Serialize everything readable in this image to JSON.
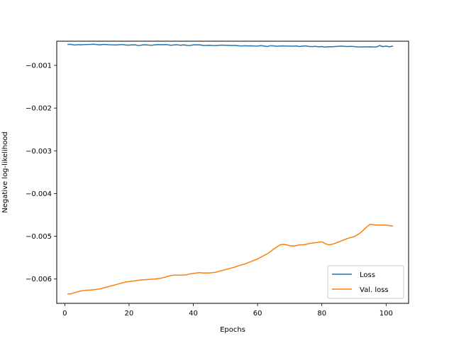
{
  "chart_data": {
    "type": "line",
    "xlabel": "Epochs",
    "ylabel": "Negative log-likelihood",
    "xlim": [
      -2.5,
      107.0
    ],
    "ylim": [
      -0.00657,
      -0.000435
    ],
    "x_ticks": [
      0,
      20,
      40,
      60,
      80,
      100
    ],
    "x_tick_labels": [
      "0",
      "20",
      "40",
      "60",
      "80",
      "100"
    ],
    "y_ticks": [
      -0.001,
      -0.002,
      -0.003,
      -0.004,
      -0.005,
      -0.006
    ],
    "y_tick_labels": [
      "−0.001",
      "−0.002",
      "−0.003",
      "−0.004",
      "−0.005",
      "−0.006"
    ],
    "grid": false,
    "legend": "bottom-right",
    "x": [
      1,
      2,
      3,
      4,
      5,
      6,
      7,
      8,
      9,
      10,
      11,
      12,
      13,
      14,
      15,
      16,
      17,
      18,
      19,
      20,
      21,
      22,
      23,
      24,
      25,
      26,
      27,
      28,
      29,
      30,
      31,
      32,
      33,
      34,
      35,
      36,
      37,
      38,
      39,
      40,
      41,
      42,
      43,
      44,
      45,
      46,
      47,
      48,
      49,
      50,
      51,
      52,
      53,
      54,
      55,
      56,
      57,
      58,
      59,
      60,
      61,
      62,
      63,
      64,
      65,
      66,
      67,
      68,
      69,
      70,
      71,
      72,
      73,
      74,
      75,
      76,
      77,
      78,
      79,
      80,
      81,
      82,
      83,
      84,
      85,
      86,
      87,
      88,
      89,
      90,
      91,
      92,
      93,
      94,
      95,
      96,
      97,
      98,
      99,
      100,
      101,
      102
    ],
    "series": [
      {
        "name": "Loss",
        "color": "#1f77b4",
        "values": [
          -0.00051,
          -0.00051,
          -0.000525,
          -0.000515,
          -0.00052,
          -0.000513,
          -0.000512,
          -0.00051,
          -0.000505,
          -0.000515,
          -0.00052,
          -0.00051,
          -0.000514,
          -0.000518,
          -0.00052,
          -0.000524,
          -0.000517,
          -0.000513,
          -0.000525,
          -0.000528,
          -0.000519,
          -0.000522,
          -0.000536,
          -0.000524,
          -0.000518,
          -0.000524,
          -0.00053,
          -0.00052,
          -0.000515,
          -0.000518,
          -0.000514,
          -0.000517,
          -0.00053,
          -0.000522,
          -0.000517,
          -0.00053,
          -0.00052,
          -0.000532,
          -0.000535,
          -0.00052,
          -0.000518,
          -0.00052,
          -0.000535,
          -0.000532,
          -0.00053,
          -0.000535,
          -0.000537,
          -0.00053,
          -0.000527,
          -0.00053,
          -0.000533,
          -0.000535,
          -0.000535,
          -0.000541,
          -0.000547,
          -0.00054,
          -0.000545,
          -0.000543,
          -0.000548,
          -0.00055,
          -0.000538,
          -0.000547,
          -0.00056,
          -0.00054,
          -0.000545,
          -0.000553,
          -0.000548,
          -0.000545,
          -0.00055,
          -0.00055,
          -0.000552,
          -0.000545,
          -0.00056,
          -0.00055,
          -0.000545,
          -0.000557,
          -0.000562,
          -0.000555,
          -0.000565,
          -0.00056,
          -0.000572,
          -0.000563,
          -0.000565,
          -0.00056,
          -0.000555,
          -0.00055,
          -0.000555,
          -0.00056,
          -0.000555,
          -0.00056,
          -0.000568,
          -0.00057,
          -0.000565,
          -0.000568,
          -0.000565,
          -0.00057,
          -0.00057,
          -0.000537,
          -0.000562,
          -0.00055,
          -0.000566,
          -0.000552
        ]
      },
      {
        "name": "Val. loss",
        "color": "#ff7f0e",
        "values": [
          -0.00635,
          -0.006345,
          -0.00632,
          -0.0063,
          -0.00628,
          -0.00627,
          -0.00626,
          -0.006258,
          -0.00625,
          -0.00624,
          -0.00623,
          -0.00621,
          -0.00619,
          -0.00617,
          -0.00615,
          -0.00613,
          -0.00611,
          -0.00609,
          -0.00607,
          -0.00606,
          -0.00605,
          -0.00604,
          -0.00603,
          -0.00602,
          -0.006015,
          -0.00601,
          -0.006005,
          -0.006,
          -0.00599,
          -0.00598,
          -0.00596,
          -0.00594,
          -0.00592,
          -0.00591,
          -0.00591,
          -0.00591,
          -0.00591,
          -0.0059,
          -0.00588,
          -0.00587,
          -0.00586,
          -0.00585,
          -0.00586,
          -0.00586,
          -0.00586,
          -0.00585,
          -0.00584,
          -0.00582,
          -0.0058,
          -0.00578,
          -0.00576,
          -0.00574,
          -0.00572,
          -0.00569,
          -0.00567,
          -0.00565,
          -0.00562,
          -0.00559,
          -0.00556,
          -0.00553,
          -0.00549,
          -0.00545,
          -0.00541,
          -0.00536,
          -0.0053,
          -0.00525,
          -0.0052,
          -0.00519,
          -0.0052,
          -0.00522,
          -0.00523,
          -0.00522,
          -0.0052,
          -0.0052,
          -0.00519,
          -0.00517,
          -0.00516,
          -0.00515,
          -0.00514,
          -0.00513,
          -0.00517,
          -0.0052,
          -0.00519,
          -0.00517,
          -0.00514,
          -0.00511,
          -0.00508,
          -0.00505,
          -0.00503,
          -0.00501,
          -0.00497,
          -0.00492,
          -0.00485,
          -0.00478,
          -0.00472,
          -0.00473,
          -0.00474,
          -0.00474,
          -0.00474,
          -0.00474,
          -0.00475,
          -0.00476
        ]
      }
    ]
  }
}
